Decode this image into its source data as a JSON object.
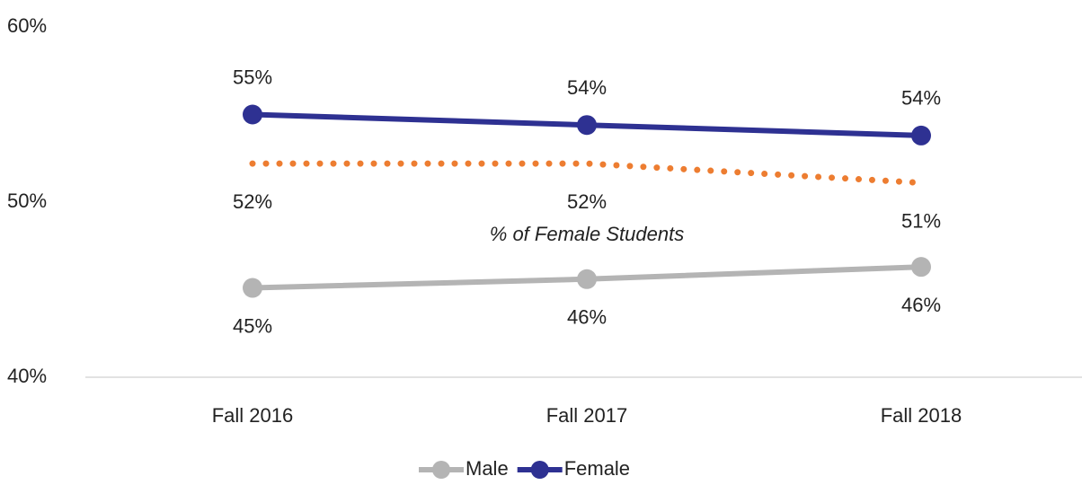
{
  "chart_data": {
    "type": "line",
    "categories": [
      "Fall 2016",
      "Fall 2017",
      "Fall 2018"
    ],
    "series": [
      {
        "name": "Male",
        "color": "#b4b4b4",
        "values": [
          45.1,
          45.6,
          46.3
        ],
        "value_labels": [
          "45%",
          "46%",
          "46%"
        ]
      },
      {
        "name": "Female",
        "color": "#2e3192",
        "values": [
          55,
          54.4,
          53.8
        ],
        "value_labels": [
          "55%",
          "54%",
          "54%"
        ]
      },
      {
        "name": "% of Female Students",
        "color": "#ed7d31",
        "values": [
          52.2,
          52.2,
          51.1
        ],
        "value_labels": [
          "52%",
          "52%",
          "51%"
        ],
        "dotted": true,
        "legend": false
      }
    ],
    "ylim": [
      40,
      60
    ],
    "yticks": [
      {
        "value": 40,
        "label": "40%"
      },
      {
        "value": 50,
        "label": "50%"
      },
      {
        "value": 60,
        "label": "60%"
      }
    ],
    "grid": false,
    "legend_position": "bottom"
  }
}
